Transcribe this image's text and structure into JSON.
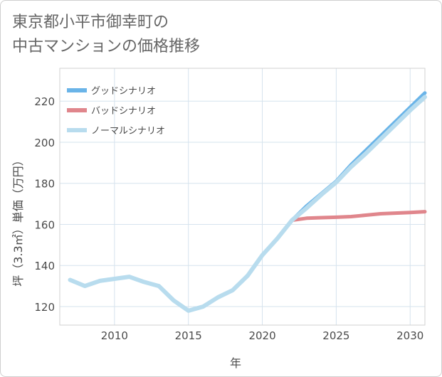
{
  "title_line1": "東京都小平市御幸町の",
  "title_line2": "中古マンションの価格推移",
  "chart_data": {
    "type": "line",
    "title": "東京都小平市御幸町の中古マンションの価格推移",
    "xlabel": "年",
    "ylabel": "坪（3.3㎡）単価（万円）",
    "xlim": [
      2006.3,
      2031
    ],
    "ylim": [
      111,
      236
    ],
    "xticks": [
      2010,
      2015,
      2020,
      2025,
      2030
    ],
    "yticks": [
      120,
      140,
      160,
      180,
      200,
      220
    ],
    "grid": true,
    "legend_position": "top-left",
    "series": [
      {
        "name": "グッドシナリオ",
        "color": "#6ab4e8",
        "x": [
          2022,
          2023,
          2024,
          2025,
          2026,
          2027,
          2028,
          2029,
          2030,
          2031
        ],
        "values": [
          162,
          169,
          175,
          181,
          189,
          196,
          203,
          210,
          217,
          224
        ]
      },
      {
        "name": "バッドシナリオ",
        "color": "#e0868c",
        "x": [
          2022,
          2023,
          2024,
          2025,
          2026,
          2027,
          2028,
          2029,
          2030,
          2031
        ],
        "values": [
          162,
          163,
          163.3,
          163.5,
          163.8,
          164.5,
          165.2,
          165.5,
          165.8,
          166.2
        ]
      },
      {
        "name": "ノーマルシナリオ",
        "color": "#b8dcee",
        "x": [
          2007,
          2008,
          2009,
          2010,
          2011,
          2012,
          2013,
          2014,
          2015,
          2016,
          2017,
          2018,
          2019,
          2020,
          2021,
          2022,
          2023,
          2024,
          2025,
          2026,
          2027,
          2028,
          2029,
          2030,
          2031
        ],
        "values": [
          133,
          130,
          132.5,
          133.5,
          134.5,
          132,
          130,
          123,
          118,
          120,
          124.5,
          128,
          135,
          145,
          153,
          162,
          168,
          174.5,
          180.5,
          188,
          194.5,
          201.5,
          208.5,
          215.5,
          222
        ]
      }
    ]
  }
}
